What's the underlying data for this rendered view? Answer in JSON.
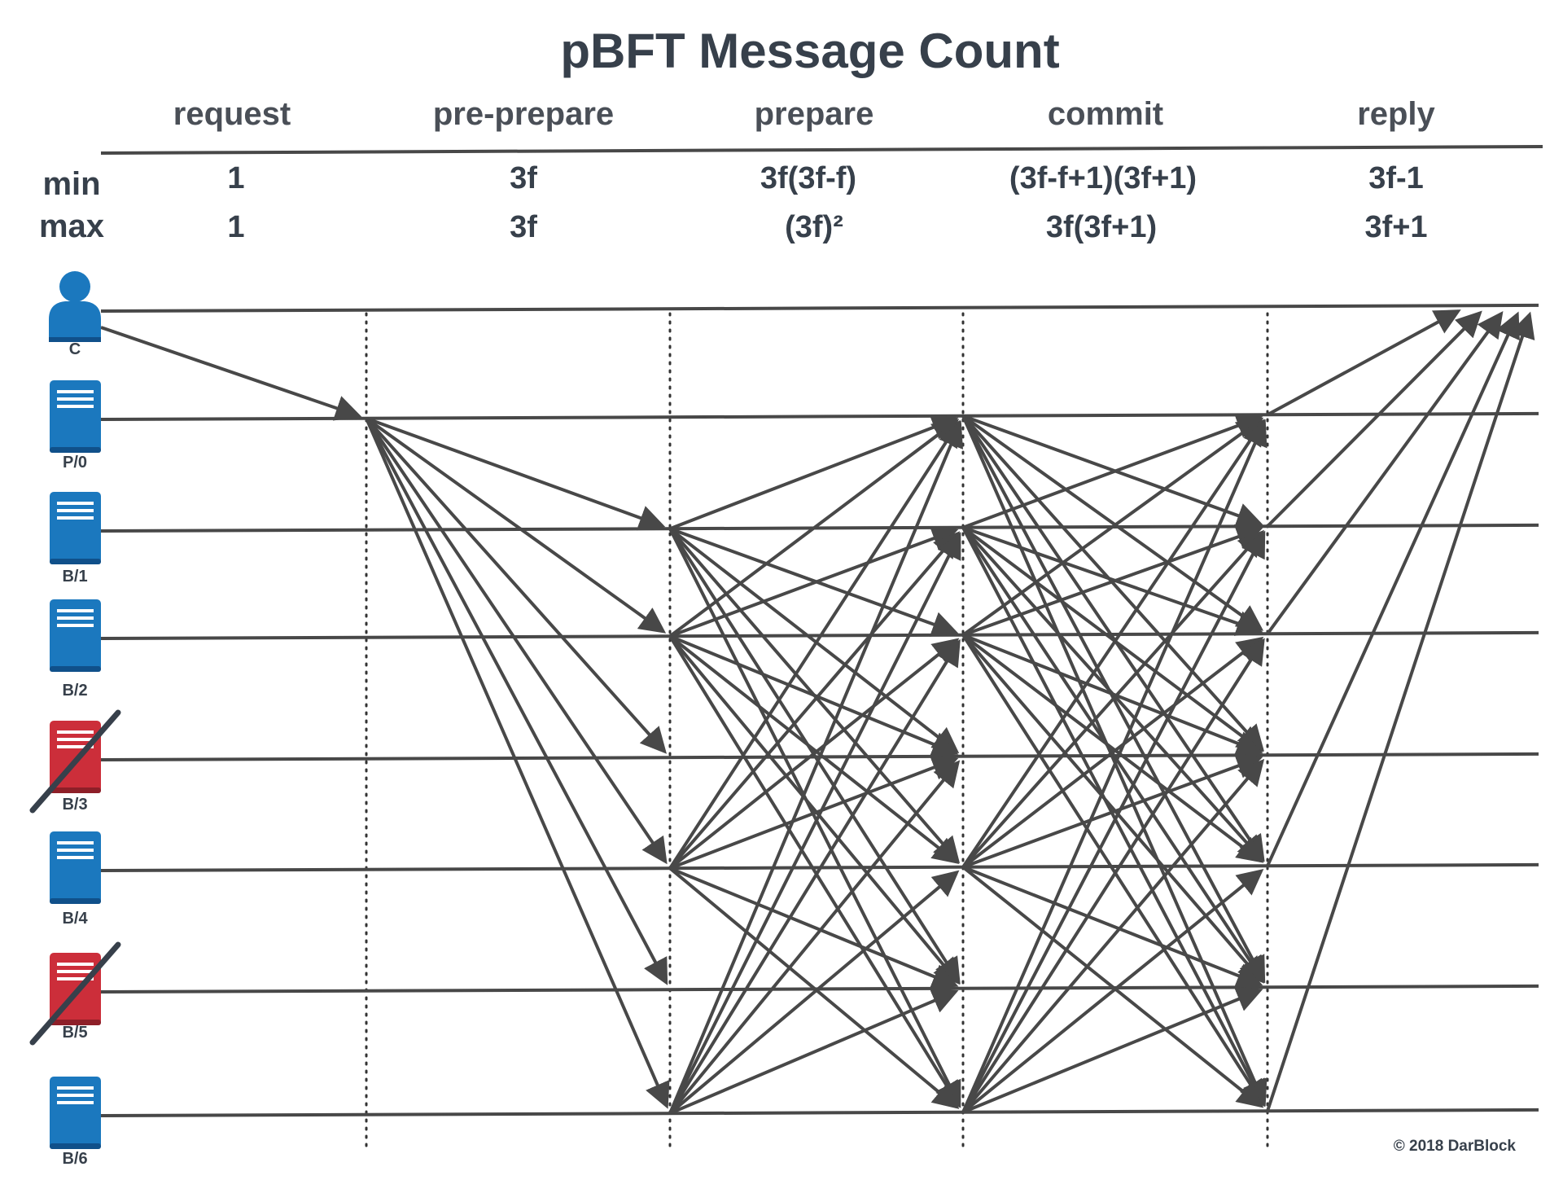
{
  "title": "pBFT Message Count",
  "phases": [
    "request",
    "pre-prepare",
    "prepare",
    "commit",
    "reply"
  ],
  "row_labels": {
    "min": "min",
    "max": "max"
  },
  "min_counts": [
    "1",
    "3f",
    "3f(3f-f)",
    "(3f-f+1)(3f+1)",
    "3f-1"
  ],
  "max_counts": [
    "1",
    "3f",
    "(3f)²",
    "3f(3f+1)",
    "3f+1"
  ],
  "nodes": [
    {
      "id": "C",
      "label": "C",
      "kind": "client",
      "faulty": false
    },
    {
      "id": "P/0",
      "label": "P/0",
      "kind": "primary",
      "faulty": false
    },
    {
      "id": "B/1",
      "label": "B/1",
      "kind": "backup",
      "faulty": false
    },
    {
      "id": "B/2",
      "label": "B/2",
      "kind": "backup",
      "faulty": false
    },
    {
      "id": "B/3",
      "label": "B/3",
      "kind": "backup",
      "faulty": true
    },
    {
      "id": "B/4",
      "label": "B/4",
      "kind": "backup",
      "faulty": false
    },
    {
      "id": "B/5",
      "label": "B/5",
      "kind": "backup",
      "faulty": true
    },
    {
      "id": "B/6",
      "label": "B/6",
      "kind": "backup",
      "faulty": false
    }
  ],
  "healthy_color": "#1b78be",
  "faulty_color": "#cc2e3a",
  "line_color": "#484848",
  "copyright": "© 2018 DarBlock"
}
